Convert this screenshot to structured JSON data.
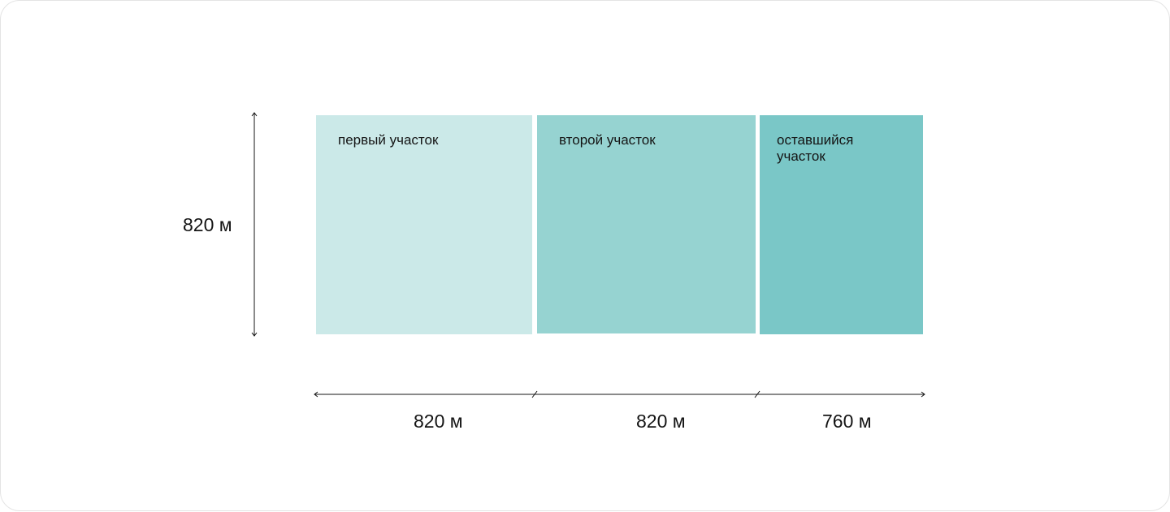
{
  "plots": [
    {
      "label": "первый участок",
      "color": "#cbe9e8"
    },
    {
      "label": "второй участок",
      "color": "#96d3d1"
    },
    {
      "label": "оставшийся участок",
      "color": "#7ac7c7"
    }
  ],
  "dimensions": {
    "height": "820 м",
    "widths": [
      "820 м",
      "820 м",
      "760 м"
    ]
  }
}
